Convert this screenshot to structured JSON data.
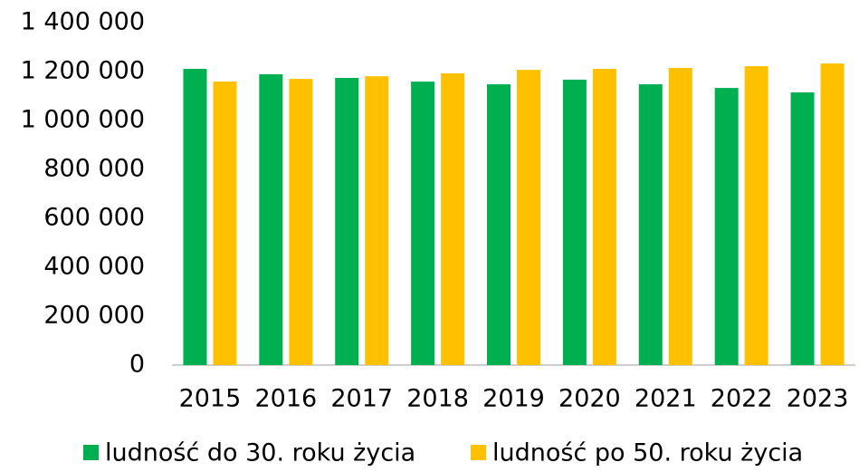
{
  "chart_data": {
    "type": "bar",
    "categories": [
      "2015",
      "2016",
      "2017",
      "2018",
      "2019",
      "2020",
      "2021",
      "2022",
      "2023"
    ],
    "series": [
      {
        "name": "ludność do 30. roku życia",
        "color": "#00b050",
        "values": [
          1211000,
          1189000,
          1174000,
          1159000,
          1148000,
          1167000,
          1148000,
          1133000,
          1115000
        ]
      },
      {
        "name": "ludność po 50. roku życia",
        "color": "#ffc000",
        "values": [
          1159000,
          1170000,
          1181000,
          1193000,
          1207000,
          1211000,
          1215000,
          1222000,
          1233000
        ]
      }
    ],
    "ylim": [
      0,
      1400000
    ],
    "yticks": [
      0,
      {
        "value": 200000,
        "label": "200 000"
      },
      {
        "value": 400000,
        "label": "400 000"
      },
      {
        "value": 600000,
        "label": "600 000"
      },
      {
        "value": 800000,
        "label": "800 000"
      },
      {
        "value": 1000000,
        "label": "1 000 000"
      },
      {
        "value": 1200000,
        "label": "1 200 000"
      },
      {
        "value": 1400000,
        "label": "1 400 000"
      }
    ],
    "grid": false,
    "legend": "bottom"
  }
}
